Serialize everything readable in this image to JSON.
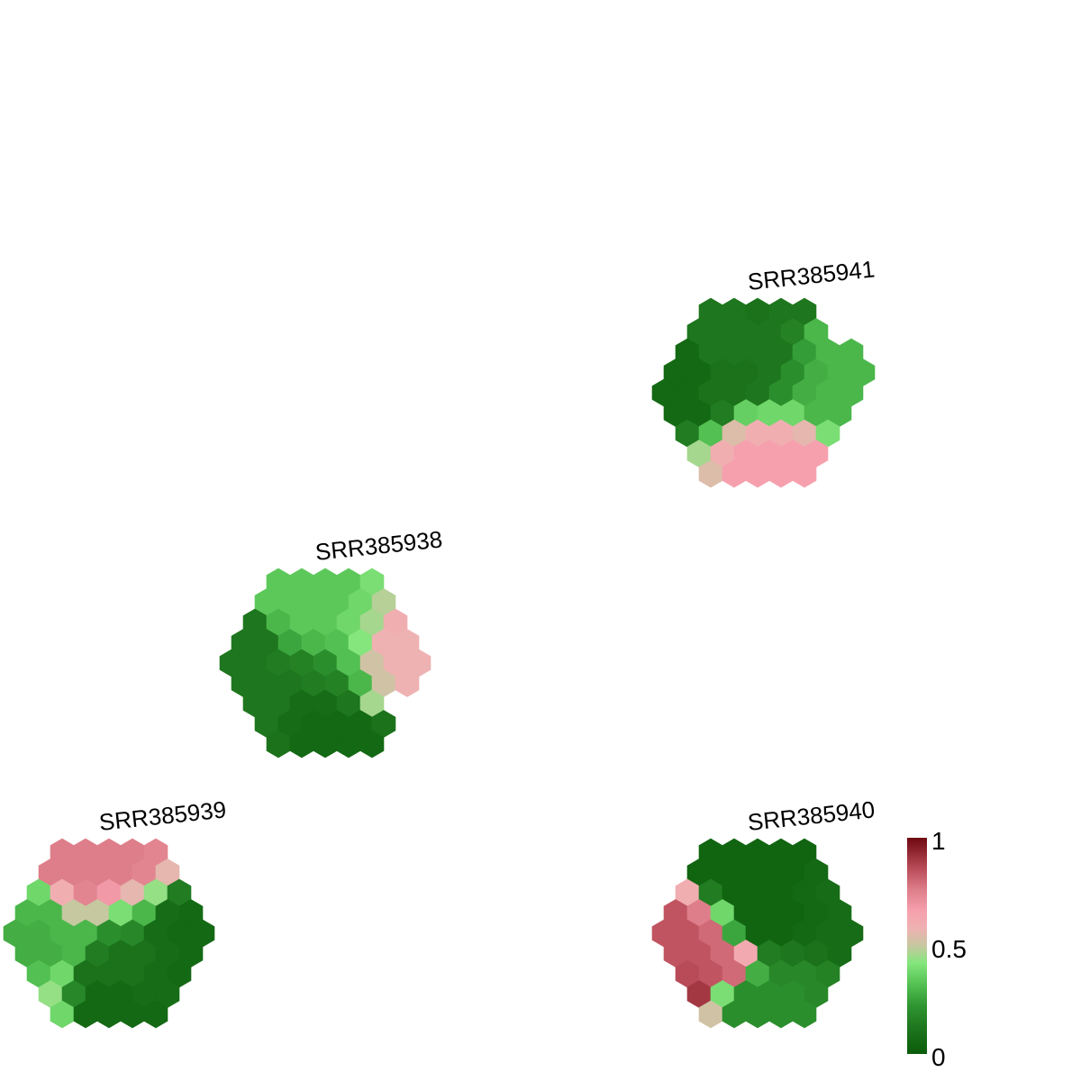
{
  "chart_data": {
    "type": "heatmap",
    "subtype": "hexagonal-grid (hexbin per sample)",
    "color_scale": {
      "min": 0,
      "max": 1,
      "ticks": [
        "1",
        "0.5",
        "0"
      ],
      "stops": [
        {
          "value": 0.0,
          "color": "#0a5c0a"
        },
        {
          "value": 0.12,
          "color": "#1e761e"
        },
        {
          "value": 0.22,
          "color": "#2e9430"
        },
        {
          "value": 0.32,
          "color": "#52c052"
        },
        {
          "value": 0.42,
          "color": "#84e67c"
        },
        {
          "value": 0.5,
          "color": "#c6c8a0"
        },
        {
          "value": 0.58,
          "color": "#efb2b2"
        },
        {
          "value": 0.66,
          "color": "#f6a0ae"
        },
        {
          "value": 0.76,
          "color": "#de7e8a"
        },
        {
          "value": 0.86,
          "color": "#b84b57"
        },
        {
          "value": 1.0,
          "color": "#6e0810"
        }
      ]
    },
    "panels": [
      {
        "name": "SRR385941",
        "values": [
          [
            0.12,
            0.12,
            0.1,
            0.12,
            0.12
          ],
          [
            0.12,
            0.12,
            0.12,
            0.12,
            0.16,
            0.3
          ],
          [
            0.06,
            0.12,
            0.12,
            0.12,
            0.12,
            0.24,
            0.3,
            0.3
          ],
          [
            0.06,
            0.06,
            0.1,
            0.1,
            0.12,
            0.2,
            0.28,
            0.3,
            0.3
          ],
          [
            0.06,
            0.06,
            0.1,
            0.1,
            0.12,
            0.2,
            0.28,
            0.3,
            0.3
          ],
          [
            0.06,
            0.06,
            0.14,
            0.36,
            0.38,
            0.38,
            0.3,
            0.3
          ],
          [
            0.14,
            0.32,
            0.54,
            0.6,
            0.6,
            0.56,
            0.4
          ],
          [
            0.46,
            0.6,
            0.66,
            0.66,
            0.66,
            0.66
          ],
          [
            0.54,
            0.66,
            0.66,
            0.66,
            0.66
          ]
        ]
      },
      {
        "name": "SRR385938",
        "values": [
          [
            0.34,
            0.34,
            0.34,
            0.34,
            0.4
          ],
          [
            0.34,
            0.34,
            0.34,
            0.34,
            0.38,
            0.48
          ],
          [
            0.12,
            0.3,
            0.34,
            0.34,
            0.38,
            0.46,
            0.6
          ],
          [
            0.12,
            0.12,
            0.26,
            0.3,
            0.32,
            0.42,
            0.58,
            0.58
          ],
          [
            0.12,
            0.12,
            0.14,
            0.16,
            0.2,
            0.32,
            0.52,
            0.58,
            0.58
          ],
          [
            0.12,
            0.12,
            0.12,
            0.14,
            0.16,
            0.3,
            0.52,
            0.58
          ],
          [
            0.12,
            0.12,
            0.08,
            0.08,
            0.12,
            0.46
          ],
          [
            0.12,
            0.08,
            0.06,
            0.06,
            0.06,
            0.1
          ],
          [
            0.1,
            0.06,
            0.06,
            0.06,
            0.06
          ]
        ]
      },
      {
        "name": "SRR385939",
        "values": [
          [
            0.76,
            0.76,
            0.76,
            0.76,
            0.74
          ],
          [
            0.76,
            0.76,
            0.76,
            0.76,
            0.74,
            0.56
          ],
          [
            0.38,
            0.6,
            0.74,
            0.68,
            0.56,
            0.44,
            0.14
          ],
          [
            0.3,
            0.3,
            0.5,
            0.5,
            0.4,
            0.3,
            0.08,
            0.06
          ],
          [
            0.28,
            0.28,
            0.3,
            0.3,
            0.2,
            0.18,
            0.08,
            0.06,
            0.06
          ],
          [
            0.28,
            0.28,
            0.3,
            0.14,
            0.1,
            0.1,
            0.08,
            0.06
          ],
          [
            0.32,
            0.38,
            0.1,
            0.1,
            0.1,
            0.08,
            0.06
          ],
          [
            0.44,
            0.18,
            0.06,
            0.06,
            0.08,
            0.08
          ],
          [
            0.38,
            0.06,
            0.06,
            0.06,
            0.06
          ]
        ]
      },
      {
        "name": "SRR385940",
        "values": [
          [
            0.04,
            0.04,
            0.04,
            0.04,
            0.04
          ],
          [
            0.04,
            0.04,
            0.04,
            0.04,
            0.04,
            0.06
          ],
          [
            0.6,
            0.14,
            0.04,
            0.04,
            0.04,
            0.06,
            0.08
          ],
          [
            0.84,
            0.76,
            0.38,
            0.04,
            0.04,
            0.04,
            0.06,
            0.08
          ],
          [
            0.84,
            0.84,
            0.8,
            0.26,
            0.04,
            0.04,
            0.06,
            0.08,
            0.08
          ],
          [
            0.84,
            0.84,
            0.8,
            0.62,
            0.14,
            0.12,
            0.1,
            0.08
          ],
          [
            0.86,
            0.84,
            0.8,
            0.28,
            0.18,
            0.18,
            0.16
          ],
          [
            0.9,
            0.4,
            0.2,
            0.2,
            0.2,
            0.18
          ],
          [
            0.52,
            0.2,
            0.2,
            0.2,
            0.2
          ]
        ]
      }
    ]
  }
}
